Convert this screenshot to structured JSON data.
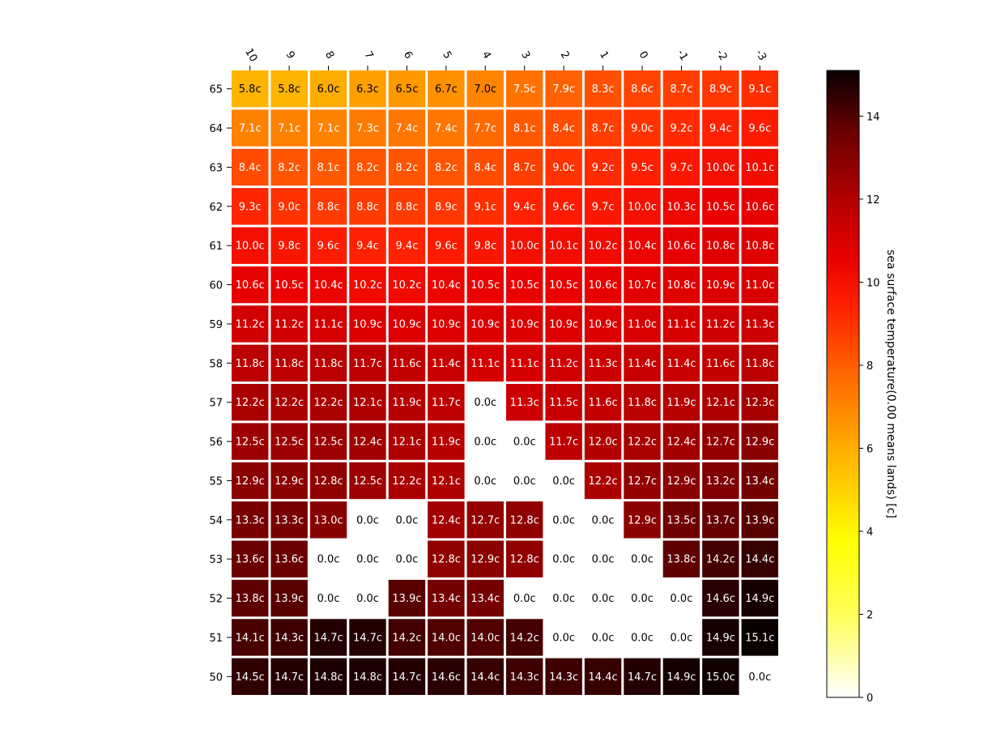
{
  "chart_data": {
    "type": "heatmap",
    "title": "",
    "xlabel": "",
    "ylabel": "",
    "x_categories": [
      "10",
      "9",
      "8",
      "7",
      "6",
      "5",
      "4",
      "3",
      "2",
      "1",
      "0",
      "-1",
      "-2",
      "-3"
    ],
    "y_categories": [
      "65",
      "64",
      "63",
      "62",
      "61",
      "60",
      "59",
      "58",
      "57",
      "56",
      "55",
      "54",
      "53",
      "52",
      "51",
      "50"
    ],
    "unit_suffix": "c",
    "values": [
      [
        5.8,
        5.8,
        6.0,
        6.3,
        6.5,
        6.7,
        7.0,
        7.5,
        7.9,
        8.3,
        8.6,
        8.7,
        8.9,
        9.1
      ],
      [
        7.1,
        7.1,
        7.1,
        7.3,
        7.4,
        7.4,
        7.7,
        8.1,
        8.4,
        8.7,
        9.0,
        9.2,
        9.4,
        9.6
      ],
      [
        8.4,
        8.2,
        8.1,
        8.2,
        8.2,
        8.2,
        8.4,
        8.7,
        9.0,
        9.2,
        9.5,
        9.7,
        10.0,
        10.1
      ],
      [
        9.3,
        9.0,
        8.8,
        8.8,
        8.8,
        8.9,
        9.1,
        9.4,
        9.6,
        9.7,
        10.0,
        10.3,
        10.5,
        10.6
      ],
      [
        10.0,
        9.8,
        9.6,
        9.4,
        9.4,
        9.6,
        9.8,
        10.0,
        10.1,
        10.2,
        10.4,
        10.6,
        10.8,
        10.8
      ],
      [
        10.6,
        10.5,
        10.4,
        10.2,
        10.2,
        10.4,
        10.5,
        10.5,
        10.5,
        10.6,
        10.7,
        10.8,
        10.9,
        11.0
      ],
      [
        11.2,
        11.2,
        11.1,
        10.9,
        10.9,
        10.9,
        10.9,
        10.9,
        10.9,
        10.9,
        11.0,
        11.1,
        11.2,
        11.3
      ],
      [
        11.8,
        11.8,
        11.8,
        11.7,
        11.6,
        11.4,
        11.1,
        11.1,
        11.2,
        11.3,
        11.4,
        11.4,
        11.6,
        11.8
      ],
      [
        12.2,
        12.2,
        12.2,
        12.1,
        11.9,
        11.7,
        0.0,
        11.3,
        11.5,
        11.6,
        11.8,
        11.9,
        12.1,
        12.3
      ],
      [
        12.5,
        12.5,
        12.5,
        12.4,
        12.1,
        11.9,
        0.0,
        0.0,
        11.7,
        12.0,
        12.2,
        12.4,
        12.7,
        12.9
      ],
      [
        12.9,
        12.9,
        12.8,
        12.5,
        12.2,
        12.1,
        0.0,
        0.0,
        0.0,
        12.2,
        12.7,
        12.9,
        13.2,
        13.4
      ],
      [
        13.3,
        13.3,
        13.0,
        0.0,
        0.0,
        12.4,
        12.7,
        12.8,
        0.0,
        0.0,
        12.9,
        13.5,
        13.7,
        13.9
      ],
      [
        13.6,
        13.6,
        0.0,
        0.0,
        0.0,
        12.8,
        12.9,
        12.8,
        0.0,
        0.0,
        0.0,
        13.8,
        14.2,
        14.4
      ],
      [
        13.8,
        13.9,
        0.0,
        0.0,
        13.9,
        13.4,
        13.4,
        0.0,
        0.0,
        0.0,
        0.0,
        0.0,
        14.6,
        14.9
      ],
      [
        14.1,
        14.3,
        14.7,
        14.7,
        14.2,
        14.0,
        14.0,
        14.2,
        0.0,
        0.0,
        0.0,
        0.0,
        14.9,
        15.1
      ],
      [
        14.5,
        14.7,
        14.8,
        14.8,
        14.7,
        14.6,
        14.4,
        14.3,
        14.3,
        14.4,
        14.7,
        14.9,
        15.0,
        0.0
      ]
    ],
    "colormap": "hot_r",
    "vmin": 0,
    "vmax": 15.1,
    "colorbar": {
      "label": "sea surface temperature(0.00 means lands) [c]",
      "ticks": [
        0,
        2,
        4,
        6,
        8,
        10,
        12,
        14
      ]
    },
    "x_tick_position": "top",
    "grid": false
  }
}
